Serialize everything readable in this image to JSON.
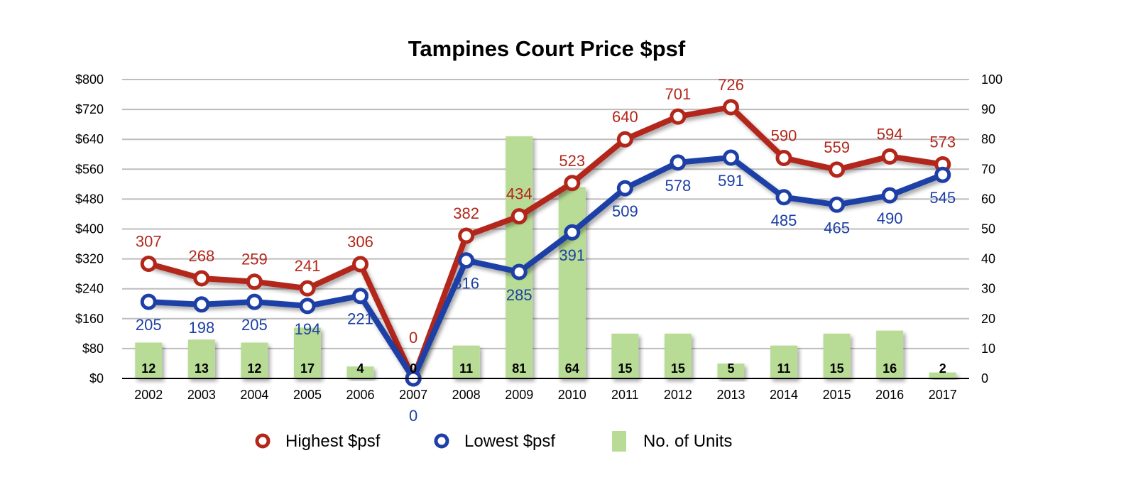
{
  "chart_data": {
    "type": "bar+line",
    "title": "Tampines Court Price $psf",
    "categories": [
      "2002",
      "2003",
      "2004",
      "2005",
      "2006",
      "2007",
      "2008",
      "2009",
      "2010",
      "2011",
      "2012",
      "2013",
      "2014",
      "2015",
      "2016",
      "2017"
    ],
    "series": [
      {
        "name": "Highest $psf",
        "type": "line",
        "axis": "left",
        "color": "#b3261a",
        "values": [
          307,
          268,
          259,
          241,
          306,
          0,
          382,
          434,
          523,
          640,
          701,
          726,
          590,
          559,
          594,
          573
        ]
      },
      {
        "name": "Lowest  $psf",
        "type": "line",
        "axis": "left",
        "color": "#1d3fa6",
        "values": [
          205,
          198,
          205,
          194,
          221,
          0,
          316,
          285,
          391,
          509,
          578,
          591,
          485,
          465,
          490,
          545
        ]
      },
      {
        "name": "No. of Units",
        "type": "bar",
        "axis": "right",
        "color": "#b8dc95",
        "values": [
          12,
          13,
          12,
          17,
          4,
          0,
          11,
          81,
          64,
          15,
          15,
          5,
          11,
          15,
          16,
          2
        ]
      }
    ],
    "left_axis": {
      "ylim": [
        0,
        800
      ],
      "ticks": [
        "$0",
        "$80",
        "$160",
        "$240",
        "$320",
        "$400",
        "$480",
        "$560",
        "$640",
        "$720",
        "$800"
      ]
    },
    "right_axis": {
      "ylim": [
        0,
        100
      ],
      "ticks": [
        "0",
        "10",
        "20",
        "30",
        "40",
        "50",
        "60",
        "70",
        "80",
        "90",
        "100"
      ]
    },
    "grid": true,
    "legend_position": "bottom"
  }
}
